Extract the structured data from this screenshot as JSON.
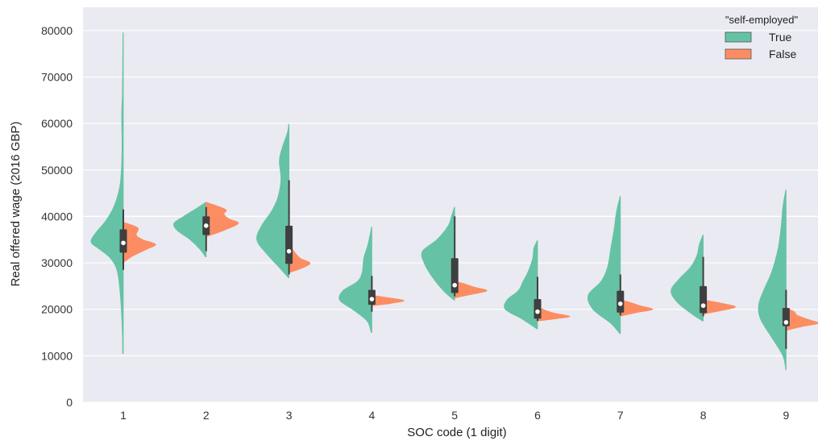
{
  "chart_data": {
    "type": "violin",
    "split": true,
    "xlabel": "SOC code (1 digit)",
    "ylabel": "Real offered wage (2016 GBP)",
    "categories": [
      "1",
      "2",
      "3",
      "4",
      "5",
      "6",
      "7",
      "8",
      "9"
    ],
    "ylim": [
      0,
      85000
    ],
    "yticks": [
      0,
      10000,
      20000,
      30000,
      40000,
      50000,
      60000,
      70000,
      80000
    ],
    "grid": true,
    "legend": {
      "title": "\"self-employed\"",
      "position": "top-right",
      "entries": [
        "True",
        "False"
      ]
    },
    "colors": {
      "True": "#66c2a5",
      "False": "#fc8d62",
      "background": "#eaeaf2",
      "box": "#3f3f3f",
      "median": "#ffffff"
    },
    "series": [
      {
        "name": "True",
        "violins": [
          {
            "ymin": 10500,
            "ymax": 79500,
            "q1": 32200,
            "median": 34300,
            "q3": 37200,
            "wlow": 28500,
            "whigh": 41500,
            "shape": [
              [
                10500,
                0.02
              ],
              [
                15000,
                0.03
              ],
              [
                22000,
                0.08
              ],
              [
                28000,
                0.18
              ],
              [
                31000,
                0.4
              ],
              [
                33000,
                0.75
              ],
              [
                34500,
                1.0
              ],
              [
                36500,
                0.85
              ],
              [
                39000,
                0.55
              ],
              [
                42000,
                0.3
              ],
              [
                46000,
                0.12
              ],
              [
                50000,
                0.06
              ],
              [
                55000,
                0.04
              ],
              [
                62000,
                0.05
              ],
              [
                66000,
                0.03
              ],
              [
                72000,
                0.02
              ],
              [
                79500,
                0.01
              ]
            ]
          },
          {
            "ymin": 31300,
            "ymax": 43000,
            "q1": 36000,
            "median": 38000,
            "q3": 40000,
            "wlow": 32500,
            "whigh": 42000,
            "shape": [
              [
                31300,
                0.02
              ],
              [
                33000,
                0.2
              ],
              [
                35000,
                0.5
              ],
              [
                37000,
                0.9
              ],
              [
                38500,
                1.0
              ],
              [
                40000,
                0.7
              ],
              [
                41500,
                0.35
              ],
              [
                43000,
                0.02
              ]
            ]
          },
          {
            "ymin": 26800,
            "ymax": 59800,
            "q1": 29800,
            "median": 32500,
            "q3": 38000,
            "wlow": 27500,
            "whigh": 47800,
            "shape": [
              [
                26800,
                0.02
              ],
              [
                29000,
                0.3
              ],
              [
                32000,
                0.7
              ],
              [
                35000,
                1.0
              ],
              [
                38000,
                0.85
              ],
              [
                41000,
                0.55
              ],
              [
                44000,
                0.35
              ],
              [
                48000,
                0.25
              ],
              [
                52000,
                0.3
              ],
              [
                55000,
                0.2
              ],
              [
                58000,
                0.05
              ],
              [
                59800,
                0.01
              ]
            ]
          },
          {
            "ymin": 15000,
            "ymax": 37700,
            "q1": 21000,
            "median": 22200,
            "q3": 24200,
            "wlow": 19500,
            "whigh": 27200,
            "shape": [
              [
                15000,
                0.02
              ],
              [
                17500,
                0.15
              ],
              [
                20000,
                0.6
              ],
              [
                22000,
                1.0
              ],
              [
                24000,
                0.9
              ],
              [
                26000,
                0.45
              ],
              [
                28000,
                0.3
              ],
              [
                31000,
                0.25
              ],
              [
                34000,
                0.12
              ],
              [
                37700,
                0.01
              ]
            ]
          },
          {
            "ymin": 22000,
            "ymax": 42000,
            "q1": 23500,
            "median": 25200,
            "q3": 31000,
            "wlow": 22800,
            "whigh": 40000,
            "shape": [
              [
                22000,
                0.02
              ],
              [
                24000,
                0.35
              ],
              [
                27000,
                0.7
              ],
              [
                30000,
                0.95
              ],
              [
                32500,
                1.0
              ],
              [
                35000,
                0.55
              ],
              [
                38000,
                0.2
              ],
              [
                40000,
                0.1
              ],
              [
                42000,
                0.01
              ]
            ]
          },
          {
            "ymin": 15800,
            "ymax": 34800,
            "q1": 18000,
            "median": 19500,
            "q3": 22200,
            "wlow": 17500,
            "whigh": 27000,
            "shape": [
              [
                15800,
                0.02
              ],
              [
                18000,
                0.5
              ],
              [
                20000,
                1.0
              ],
              [
                22000,
                0.95
              ],
              [
                24000,
                0.6
              ],
              [
                26000,
                0.45
              ],
              [
                28000,
                0.3
              ],
              [
                31000,
                0.15
              ],
              [
                33000,
                0.12
              ],
              [
                34800,
                0.01
              ]
            ]
          },
          {
            "ymin": 14800,
            "ymax": 44300,
            "q1": 19300,
            "median": 21200,
            "q3": 24000,
            "wlow": 18700,
            "whigh": 27500,
            "shape": [
              [
                14800,
                0.02
              ],
              [
                17000,
                0.3
              ],
              [
                20000,
                0.85
              ],
              [
                23000,
                1.0
              ],
              [
                26000,
                0.6
              ],
              [
                29000,
                0.4
              ],
              [
                33000,
                0.3
              ],
              [
                37000,
                0.2
              ],
              [
                41000,
                0.12
              ],
              [
                44300,
                0.01
              ]
            ]
          },
          {
            "ymin": 17500,
            "ymax": 36000,
            "q1": 19200,
            "median": 20800,
            "q3": 25000,
            "wlow": 18500,
            "whigh": 31300,
            "shape": [
              [
                17500,
                0.02
              ],
              [
                19000,
                0.35
              ],
              [
                21500,
                0.8
              ],
              [
                24000,
                1.0
              ],
              [
                26500,
                0.75
              ],
              [
                29000,
                0.4
              ],
              [
                31500,
                0.2
              ],
              [
                34000,
                0.12
              ],
              [
                36000,
                0.01
              ]
            ]
          },
          {
            "ymin": 7000,
            "ymax": 45700,
            "q1": 16400,
            "median": 17200,
            "q3": 20300,
            "wlow": 11500,
            "whigh": 24200,
            "shape": [
              [
                7000,
                0.01
              ],
              [
                10000,
                0.1
              ],
              [
                14000,
                0.45
              ],
              [
                18000,
                0.8
              ],
              [
                21000,
                0.85
              ],
              [
                24000,
                0.7
              ],
              [
                28000,
                0.45
              ],
              [
                33000,
                0.25
              ],
              [
                38000,
                0.15
              ],
              [
                42000,
                0.1
              ],
              [
                45700,
                0.01
              ]
            ]
          }
        ]
      },
      {
        "name": "False",
        "violins": [
          {
            "ymin": 30200,
            "ymax": 38700,
            "shape": [
              [
                30200,
                0.02
              ],
              [
                31500,
                0.3
              ],
              [
                33000,
                0.75
              ],
              [
                34000,
                1.0
              ],
              [
                35000,
                0.6
              ],
              [
                36000,
                0.4
              ],
              [
                37500,
                0.45
              ],
              [
                38700,
                0.02
              ]
            ]
          },
          {
            "ymin": 35700,
            "ymax": 43000,
            "shape": [
              [
                35700,
                0.02
              ],
              [
                37000,
                0.55
              ],
              [
                38500,
                1.0
              ],
              [
                39500,
                0.7
              ],
              [
                40500,
                0.55
              ],
              [
                41500,
                0.6
              ],
              [
                43000,
                0.02
              ]
            ]
          },
          {
            "ymin": 28000,
            "ymax": 34000,
            "shape": [
              [
                28000,
                0.05
              ],
              [
                29000,
                0.45
              ],
              [
                30000,
                0.65
              ],
              [
                31000,
                0.35
              ],
              [
                32500,
                0.15
              ],
              [
                34000,
                0.02
              ]
            ]
          },
          {
            "ymin": 20800,
            "ymax": 23000,
            "shape": [
              [
                20800,
                0.02
              ],
              [
                21300,
                0.6
              ],
              [
                21900,
                1.0
              ],
              [
                22500,
                0.5
              ],
              [
                23000,
                0.02
              ]
            ]
          },
          {
            "ymin": 22500,
            "ymax": 26000,
            "shape": [
              [
                22500,
                0.02
              ],
              [
                23200,
                0.5
              ],
              [
                24000,
                1.0
              ],
              [
                24800,
                0.6
              ],
              [
                25500,
                0.3
              ],
              [
                26000,
                0.02
              ]
            ]
          },
          {
            "ymin": 17500,
            "ymax": 20500,
            "shape": [
              [
                17500,
                0.02
              ],
              [
                18000,
                0.6
              ],
              [
                18500,
                1.0
              ],
              [
                19200,
                0.5
              ],
              [
                19800,
                0.25
              ],
              [
                20500,
                0.02
              ]
            ]
          },
          {
            "ymin": 18600,
            "ymax": 22000,
            "shape": [
              [
                18600,
                0.02
              ],
              [
                19300,
                0.5
              ],
              [
                20000,
                1.0
              ],
              [
                20800,
                0.6
              ],
              [
                21500,
                0.3
              ],
              [
                22000,
                0.02
              ]
            ]
          },
          {
            "ymin": 19000,
            "ymax": 22000,
            "shape": [
              [
                19000,
                0.02
              ],
              [
                19800,
                0.6
              ],
              [
                20500,
                1.0
              ],
              [
                21200,
                0.65
              ],
              [
                22000,
                0.02
              ]
            ]
          },
          {
            "ymin": 15500,
            "ymax": 20200,
            "shape": [
              [
                15500,
                0.02
              ],
              [
                16300,
                0.5
              ],
              [
                17000,
                1.0
              ],
              [
                17800,
                0.7
              ],
              [
                18700,
                0.35
              ],
              [
                19500,
                0.25
              ],
              [
                20200,
                0.02
              ]
            ]
          }
        ]
      }
    ]
  }
}
